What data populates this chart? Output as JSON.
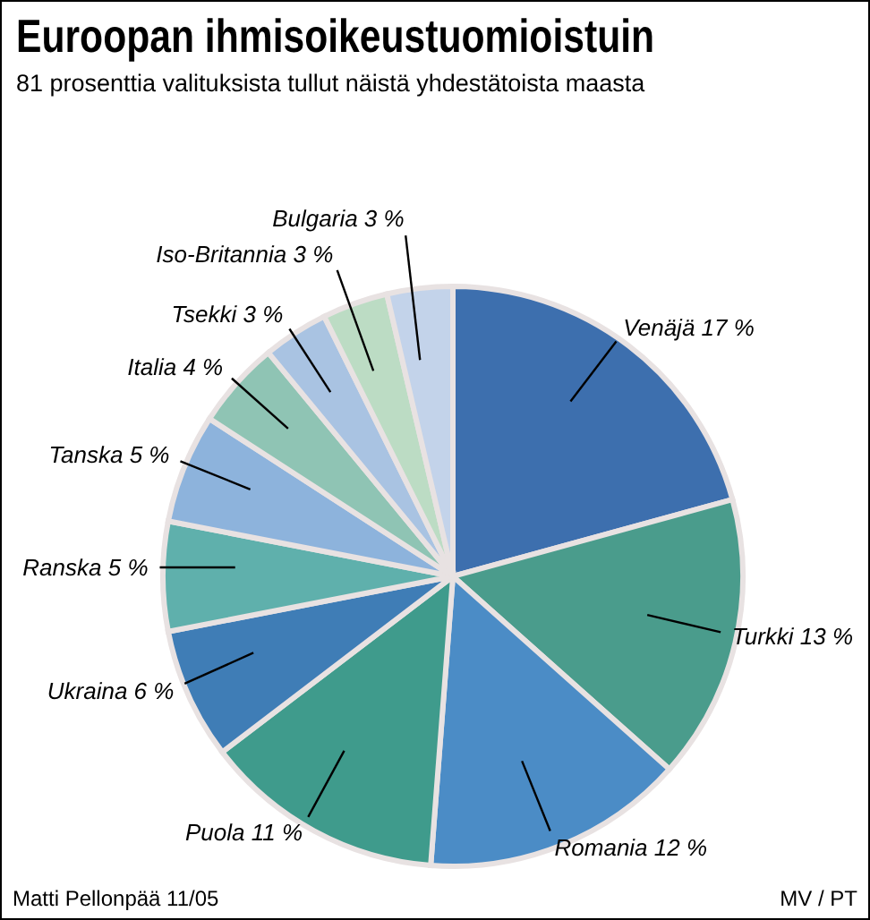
{
  "chart_data": {
    "type": "pie",
    "title": "Euroopan ihmisoikeustuomioistuin",
    "subtitle": "81 prosenttia valituksista tullut näistä yhdestätoista maasta",
    "categories": [
      "Venäjä",
      "Turkki",
      "Romania",
      "Puola",
      "Ukraina",
      "Ranska",
      "Tanska",
      "Italia",
      "Tsekki",
      "Iso-Britannia",
      "Bulgaria"
    ],
    "values": [
      17,
      13,
      12,
      11,
      6,
      5,
      5,
      4,
      3,
      3,
      3
    ],
    "value_labels": [
      "17 %",
      "13 %",
      "12 %",
      "11 %",
      "6 %",
      "5 %",
      "5 %",
      "4 %",
      "3 %",
      "3 %",
      "3 %"
    ],
    "colors": [
      "#3d6fae",
      "#4a9c8c",
      "#4b8cc6",
      "#3f9b8c",
      "#3f7db6",
      "#5fb0ac",
      "#8db3dc",
      "#8fc4b4",
      "#a9c3e2",
      "#bcdcc4",
      "#c3d3ea"
    ],
    "annotations": [
      "Matti Pellonpää 11/05",
      "MV / PT"
    ]
  }
}
